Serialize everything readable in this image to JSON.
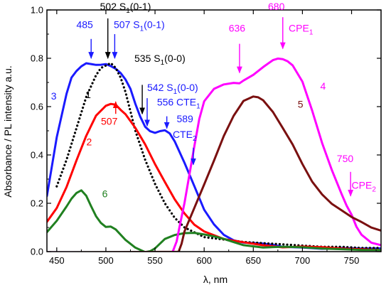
{
  "chart_data": {
    "type": "line",
    "xlabel": "λ, nm",
    "ylabel": "Absorbance / PL intensity a.u.",
    "xlim": [
      440,
      780
    ],
    "ylim": [
      0.0,
      1.0
    ],
    "x_ticks": [
      450,
      500,
      550,
      600,
      650,
      700,
      750
    ],
    "y_ticks": [
      0.0,
      0.2,
      0.4,
      0.6,
      0.8,
      1.0
    ],
    "x_tick_labels": [
      "450",
      "500",
      "550",
      "600",
      "650",
      "700",
      "750"
    ],
    "y_tick_labels": [
      "0.0",
      "0.2",
      "0.4",
      "0.6",
      "0.8",
      "1.0"
    ],
    "grid": false,
    "series": [
      {
        "id": "3",
        "color": "#1a1aff",
        "style": "solid",
        "x": [
          440,
          450,
          460,
          465,
          470,
          475,
          480,
          490,
          495,
          500,
          505,
          510,
          515,
          520,
          525,
          530,
          535,
          540,
          545,
          550,
          555,
          560,
          565,
          570,
          580,
          590,
          600,
          610,
          620,
          630,
          640,
          650,
          660,
          670,
          680,
          700,
          720,
          740,
          760,
          780
        ],
        "y": [
          0.23,
          0.47,
          0.65,
          0.72,
          0.75,
          0.77,
          0.78,
          0.77,
          0.77,
          0.775,
          0.77,
          0.76,
          0.74,
          0.71,
          0.67,
          0.61,
          0.56,
          0.52,
          0.5,
          0.49,
          0.495,
          0.5,
          0.49,
          0.46,
          0.37,
          0.27,
          0.17,
          0.11,
          0.07,
          0.05,
          0.04,
          0.035,
          0.03,
          0.025,
          0.02,
          0.02,
          0.015,
          0.015,
          0.01,
          0.01
        ]
      },
      {
        "id": "1",
        "color": "#000000",
        "style": "dotted",
        "x": [
          450,
          460,
          470,
          480,
          490,
          495,
          500,
          505,
          510,
          515,
          520,
          525,
          530,
          540,
          550,
          560,
          570,
          580,
          590,
          600,
          620,
          640,
          660,
          680,
          700,
          720,
          740,
          760,
          780
        ],
        "y": [
          0.27,
          0.38,
          0.51,
          0.64,
          0.73,
          0.76,
          0.77,
          0.78,
          0.76,
          0.72,
          0.66,
          0.58,
          0.5,
          0.38,
          0.28,
          0.2,
          0.14,
          0.1,
          0.08,
          0.06,
          0.05,
          0.04,
          0.035,
          0.03,
          0.025,
          0.02,
          0.02,
          0.015,
          0.015
        ]
      },
      {
        "id": "2",
        "color": "#ff0000",
        "style": "solid",
        "x": [
          440,
          450,
          460,
          470,
          480,
          490,
          500,
          505,
          510,
          515,
          520,
          530,
          540,
          550,
          560,
          570,
          580,
          590,
          600,
          620,
          640,
          660,
          680,
          700,
          720,
          740,
          760,
          780
        ],
        "y": [
          0.12,
          0.18,
          0.27,
          0.38,
          0.48,
          0.56,
          0.6,
          0.61,
          0.61,
          0.59,
          0.57,
          0.51,
          0.44,
          0.36,
          0.29,
          0.22,
          0.16,
          0.11,
          0.08,
          0.05,
          0.04,
          0.03,
          0.02,
          0.02,
          0.015,
          0.01,
          0.01,
          0.01
        ]
      },
      {
        "id": "6",
        "color": "#208020",
        "style": "solid",
        "x": [
          440,
          450,
          460,
          465,
          470,
          475,
          480,
          485,
          490,
          495,
          500,
          505,
          510,
          520,
          530,
          540,
          545,
          550,
          560,
          570,
          580,
          590,
          600,
          610,
          620,
          630,
          640,
          660,
          680,
          700,
          720,
          740,
          760,
          780
        ],
        "y": [
          0.08,
          0.13,
          0.19,
          0.22,
          0.24,
          0.25,
          0.23,
          0.19,
          0.15,
          0.12,
          0.1,
          0.1,
          0.09,
          0.05,
          0.02,
          0.0,
          0.0,
          0.01,
          0.05,
          0.07,
          0.08,
          0.08,
          0.07,
          0.06,
          0.05,
          0.04,
          0.03,
          0.02,
          0.02,
          0.015,
          0.01,
          0.01,
          0.01,
          0.01
        ]
      },
      {
        "id": "4",
        "color": "#ff00ff",
        "style": "solid",
        "x": [
          440,
          560,
          568,
          572,
          575,
          580,
          585,
          590,
          595,
          600,
          610,
          620,
          630,
          636,
          640,
          650,
          660,
          670,
          675,
          680,
          685,
          690,
          700,
          710,
          720,
          730,
          740,
          745,
          750,
          755,
          760,
          770,
          780
        ],
        "y": [
          0.0,
          0.0,
          0.0,
          0.04,
          0.1,
          0.2,
          0.32,
          0.44,
          0.55,
          0.62,
          0.67,
          0.69,
          0.7,
          0.7,
          0.71,
          0.73,
          0.76,
          0.79,
          0.8,
          0.8,
          0.79,
          0.77,
          0.7,
          0.58,
          0.45,
          0.34,
          0.24,
          0.19,
          0.15,
          0.1,
          0.07,
          0.04,
          0.03
        ]
      },
      {
        "id": "5",
        "color": "#7a1010",
        "style": "solid",
        "x": [
          440,
          574,
          577,
          580,
          590,
          600,
          610,
          620,
          630,
          640,
          650,
          655,
          660,
          670,
          680,
          690,
          700,
          710,
          720,
          730,
          740,
          750,
          760,
          770,
          780
        ],
        "y": [
          0.0,
          0.0,
          0.03,
          0.08,
          0.18,
          0.28,
          0.38,
          0.48,
          0.56,
          0.62,
          0.64,
          0.64,
          0.63,
          0.58,
          0.51,
          0.44,
          0.36,
          0.29,
          0.24,
          0.2,
          0.17,
          0.14,
          0.12,
          0.1,
          0.09
        ]
      }
    ],
    "series_labels": [
      {
        "text": "3",
        "color": "#1a1aff",
        "x": 447,
        "y": 0.63
      },
      {
        "text": "1",
        "color": "#000000",
        "x": 482,
        "y": 0.635
      },
      {
        "text": "2",
        "color": "#ff0000",
        "x": 483,
        "y": 0.44
      },
      {
        "text": "6",
        "color": "#208020",
        "x": 499,
        "y": 0.225
      },
      {
        "text": "4",
        "color": "#ff00ff",
        "x": 721,
        "y": 0.67
      },
      {
        "text": "5",
        "color": "#7a1010",
        "x": 698,
        "y": 0.595
      }
    ],
    "annotations": [
      {
        "text": "485",
        "color": "#1a1aff",
        "x": 470,
        "y": 0.925,
        "arrow": [
          485,
          0.88,
          485,
          0.8
        ]
      },
      {
        "text": "502 S",
        "sub": "1",
        "suffix": "(0-1)",
        "color": "#000000",
        "x": 494,
        "y": 1.0,
        "arrow": [
          502,
          0.965,
          502,
          0.8
        ]
      },
      {
        "text": "507 S",
        "sub": "1",
        "suffix": "(0-1)",
        "color": "#1a1aff",
        "x": 508,
        "y": 0.925,
        "arrow": [
          509,
          0.9,
          509,
          0.8
        ]
      },
      {
        "text": "535 S",
        "sub": "1",
        "suffix": "(0-0)",
        "color": "#000000",
        "x": 529,
        "y": 0.785,
        "arrow": [
          537,
          0.69,
          537,
          0.57
        ]
      },
      {
        "text": "507",
        "color": "#ff0000",
        "x": 495,
        "y": 0.525,
        "arrow": [
          510,
          0.57,
          510,
          0.62
        ]
      },
      {
        "text": "542 S",
        "sub": "1",
        "suffix": "(0-0)",
        "color": "#1a1aff",
        "x": 542,
        "y": 0.665,
        "arrow": [
          542,
          0.635,
          542,
          0.52
        ]
      },
      {
        "text": "556 CTE",
        "sub": "1",
        "suffix": "",
        "color": "#1a1aff",
        "x": 552,
        "y": 0.605,
        "arrow": [
          562,
          0.56,
          562,
          0.51
        ]
      },
      {
        "text": "589",
        "color": "#1a1aff",
        "x": 572,
        "y": 0.535,
        "arrow": null
      },
      {
        "text": "CTE",
        "sub": "2",
        "suffix": "",
        "color": "#1a1aff",
        "x": 568,
        "y": 0.47,
        "arrow": [
          589,
          0.43,
          589,
          0.36
        ]
      },
      {
        "text": "636",
        "color": "#ff00ff",
        "x": 625,
        "y": 0.91,
        "arrow": [
          636,
          0.86,
          636,
          0.74
        ]
      },
      {
        "text": "680",
        "color": "#ff00ff",
        "x": 665,
        "y": 1.0,
        "arrow": null
      },
      {
        "text": "CPE",
        "sub": "1",
        "suffix": "",
        "color": "#ff00ff",
        "x": 686,
        "y": 0.91,
        "arrow": [
          680,
          0.97,
          680,
          0.84
        ]
      },
      {
        "text": "750",
        "color": "#ff00ff",
        "x": 735,
        "y": 0.37,
        "arrow": [
          749,
          0.33,
          749,
          0.23
        ]
      },
      {
        "text": "CPE",
        "sub": "2",
        "suffix": "",
        "color": "#ff00ff",
        "x": 750,
        "y": 0.26,
        "arrow": null
      }
    ]
  }
}
